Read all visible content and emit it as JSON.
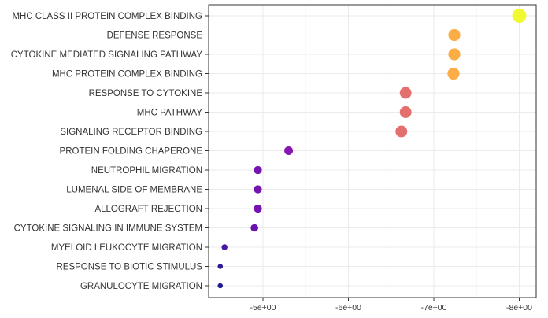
{
  "chart_data": {
    "type": "scatter",
    "title": "",
    "xlabel": "",
    "ylabel": "",
    "x_axis": {
      "reversed": true,
      "ticks": [
        {
          "value": -5,
          "label": "-5e+00"
        },
        {
          "value": -6,
          "label": "-6e+00"
        },
        {
          "value": -7,
          "label": "-7e+00"
        },
        {
          "value": -8,
          "label": "-8e+00"
        }
      ]
    },
    "grid": true,
    "legend": "none",
    "points": [
      {
        "label": "MHC CLASS II PROTEIN COMPLEX BINDING",
        "x": -8.0,
        "size": 1.0,
        "color": "#f0f921"
      },
      {
        "label": "DEFENSE RESPONSE",
        "x": -7.24,
        "size": 0.8,
        "color": "#fca636"
      },
      {
        "label": "CYTOKINE MEDIATED SIGNALING PATHWAY",
        "x": -7.24,
        "size": 0.8,
        "color": "#fca636"
      },
      {
        "label": "MHC PROTEIN COMPLEX BINDING",
        "x": -7.23,
        "size": 0.8,
        "color": "#fca636"
      },
      {
        "label": "RESPONSE TO CYTOKINE",
        "x": -6.67,
        "size": 0.78,
        "color": "#e16462"
      },
      {
        "label": "MHC PATHWAY",
        "x": -6.67,
        "size": 0.78,
        "color": "#e16462"
      },
      {
        "label": "SIGNALING RECEPTOR BINDING",
        "x": -6.62,
        "size": 0.78,
        "color": "#e16462"
      },
      {
        "label": "PROTEIN FOLDING CHAPERONE",
        "x": -5.3,
        "size": 0.5,
        "color": "#7e03a8"
      },
      {
        "label": "NEUTROPHIL MIGRATION",
        "x": -4.94,
        "size": 0.45,
        "color": "#6a00a8"
      },
      {
        "label": "LUMENAL SIDE OF MEMBRANE",
        "x": -4.94,
        "size": 0.45,
        "color": "#6a00a8"
      },
      {
        "label": "ALLOGRAFT REJECTION",
        "x": -4.94,
        "size": 0.45,
        "color": "#6a00a8"
      },
      {
        "label": "CYTOKINE SIGNALING IN IMMUNE SYSTEM",
        "x": -4.9,
        "size": 0.4,
        "color": "#5c01a6"
      },
      {
        "label": "MYELOID LEUKOCYTE MIGRATION",
        "x": -4.55,
        "size": 0.25,
        "color": "#3a049a"
      },
      {
        "label": "RESPONSE TO BIOTIC STIMULUS",
        "x": -4.5,
        "size": 0.18,
        "color": "#1b068d"
      },
      {
        "label": "GRANULOCYTE MIGRATION",
        "x": -4.5,
        "size": 0.18,
        "color": "#0d0887"
      }
    ]
  }
}
